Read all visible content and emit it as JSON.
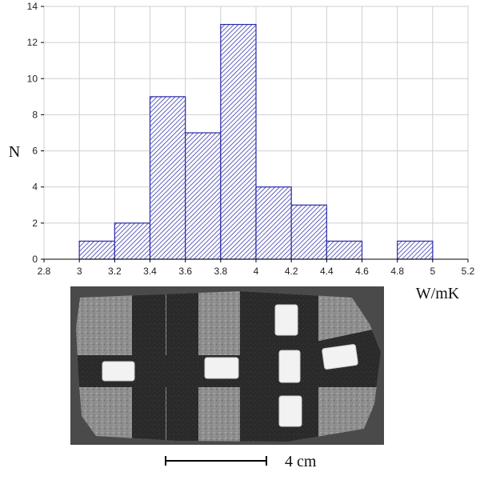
{
  "chart_data": {
    "type": "bar",
    "title": "",
    "xlabel": "W/mK",
    "ylabel": "N",
    "xlim": [
      2.8,
      5.2
    ],
    "ylim": [
      0,
      14
    ],
    "x_ticks": [
      "2.8",
      "3",
      "3.2",
      "3.4",
      "3.6",
      "3.8",
      "4",
      "4.2",
      "4.4",
      "4.6",
      "4.8",
      "5",
      "5.2"
    ],
    "y_ticks": [
      "0",
      "2",
      "4",
      "6",
      "8",
      "10",
      "12",
      "14"
    ],
    "bins": [
      {
        "from": 3.0,
        "to": 3.2,
        "count": 1
      },
      {
        "from": 3.2,
        "to": 3.4,
        "count": 2
      },
      {
        "from": 3.4,
        "to": 3.6,
        "count": 9
      },
      {
        "from": 3.6,
        "to": 3.8,
        "count": 7
      },
      {
        "from": 3.8,
        "to": 4.0,
        "count": 13
      },
      {
        "from": 4.0,
        "to": 4.2,
        "count": 4
      },
      {
        "from": 4.2,
        "to": 4.4,
        "count": 3
      },
      {
        "from": 4.4,
        "to": 4.6,
        "count": 1
      },
      {
        "from": 4.6,
        "to": 4.8,
        "count": 0
      },
      {
        "from": 4.8,
        "to": 5.0,
        "count": 1
      }
    ],
    "bar_color": "#2a2aa8",
    "fill": "diagonal hatch",
    "grid": "vertical and horizontal, light grey"
  },
  "photo": {
    "scale_bar_label": "4 cm",
    "sample_color": "#8c8c8c",
    "band_color": "#2b2b2b",
    "marker_color": "#f2f2f2"
  }
}
